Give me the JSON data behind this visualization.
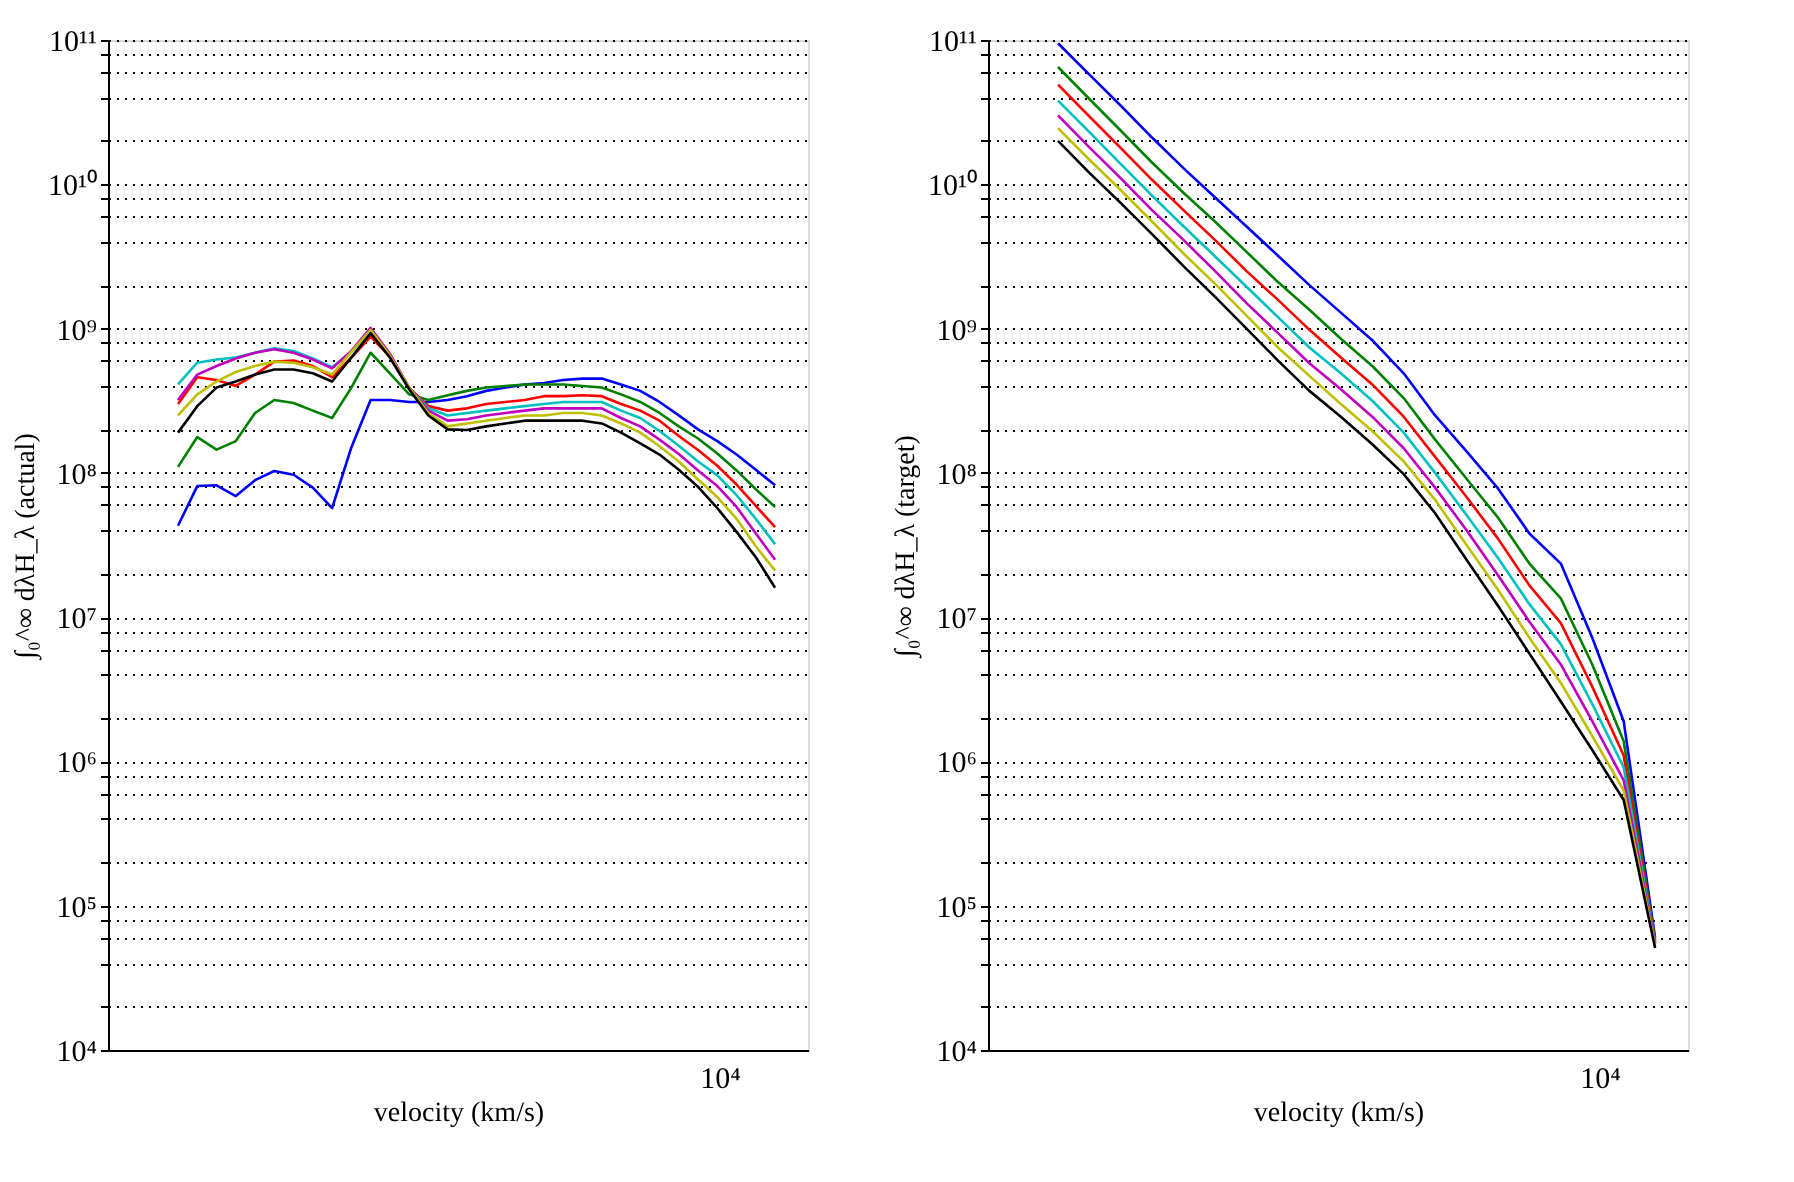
{
  "chart_data": [
    {
      "type": "line",
      "xlabel": "velocity (km/s)",
      "ylabel": "∫₀^∞ dλH_λ (actual)",
      "log": "y",
      "grid": "y",
      "annotations": [
        "10⁴"
      ],
      "ylim": [
        10000,
        100000000000
      ],
      "yticks": [
        {
          "value": 10000,
          "label": "10⁴"
        },
        {
          "value": 20000,
          "label": null
        },
        {
          "value": 40000,
          "label": null
        },
        {
          "value": 60000,
          "label": null
        },
        {
          "value": 80000,
          "label": null
        },
        {
          "value": 100000,
          "label": "10⁵"
        },
        {
          "value": 200000,
          "label": null
        },
        {
          "value": 400000,
          "label": null
        },
        {
          "value": 600000,
          "label": null
        },
        {
          "value": 800000,
          "label": null
        },
        {
          "value": 1000000,
          "label": "10⁶"
        },
        {
          "value": 2000000,
          "label": null
        },
        {
          "value": 4000000,
          "label": null
        },
        {
          "value": 6000000,
          "label": null
        },
        {
          "value": 8000000,
          "label": null
        },
        {
          "value": 10000000,
          "label": "10⁷"
        },
        {
          "value": 20000000,
          "label": null
        },
        {
          "value": 40000000,
          "label": null
        },
        {
          "value": 60000000,
          "label": null
        },
        {
          "value": 80000000,
          "label": null
        },
        {
          "value": 100000000,
          "label": "10⁸"
        },
        {
          "value": 200000000,
          "label": null
        },
        {
          "value": 400000000,
          "label": null
        },
        {
          "value": 600000000,
          "label": null
        },
        {
          "value": 800000000,
          "label": null
        },
        {
          "value": 1000000000,
          "label": "10⁹"
        },
        {
          "value": 2000000000,
          "label": null
        },
        {
          "value": 4000000000,
          "label": null
        },
        {
          "value": 6000000000,
          "label": null
        },
        {
          "value": 8000000000,
          "label": null
        },
        {
          "value": 10000000000,
          "label": "10¹⁰"
        },
        {
          "value": 20000000000,
          "label": null
        },
        {
          "value": 40000000000,
          "label": null
        },
        {
          "value": 60000000000,
          "label": null
        },
        {
          "value": 80000000000,
          "label": null
        },
        {
          "value": 100000000000,
          "label": "10¹¹"
        }
      ],
      "categories": [
        null,
        null,
        null,
        null,
        null,
        null,
        null,
        null,
        null,
        null,
        null,
        null,
        null,
        null,
        null,
        null,
        null,
        null,
        null,
        null,
        null,
        null,
        null,
        null,
        null,
        null,
        null,
        null,
        null,
        null,
        null,
        null
      ],
      "series": [
        {
          "color": "#0000ff",
          "values": [
            43000000.0,
            81000000.0,
            82000000.0,
            69000000.0,
            89000000.0,
            103000000.0,
            97000000.0,
            79000000.0,
            57000000.0,
            150000000.0,
            320000000.0,
            320000000.0,
            310000000.0,
            310000000.0,
            320000000.0,
            340000000.0,
            370000000.0,
            390000000.0,
            410000000.0,
            420000000.0,
            440000000.0,
            450000000.0,
            450000000.0,
            410000000.0,
            370000000.0,
            310000000.0,
            250000000.0,
            200000000.0,
            166000000.0,
            134000000.0,
            105000000.0,
            82000000.0
          ]
        },
        {
          "color": "#008000",
          "values": [
            110000000.0,
            177000000.0,
            145000000.0,
            166000000.0,
            260000000.0,
            320000000.0,
            305000000.0,
            270000000.0,
            240000000.0,
            390000000.0,
            680000000.0,
            490000000.0,
            350000000.0,
            320000000.0,
            345000000.0,
            370000000.0,
            390000000.0,
            400000000.0,
            410000000.0,
            410000000.0,
            410000000.0,
            400000000.0,
            390000000.0,
            350000000.0,
            310000000.0,
            260000000.0,
            210000000.0,
            173000000.0,
            136000000.0,
            104000000.0,
            77000000.0,
            58000000.0
          ]
        },
        {
          "color": "#ff0000",
          "values": [
            300000000.0,
            460000000.0,
            440000000.0,
            400000000.0,
            480000000.0,
            590000000.0,
            600000000.0,
            550000000.0,
            460000000.0,
            630000000.0,
            880000000.0,
            640000000.0,
            390000000.0,
            290000000.0,
            270000000.0,
            280000000.0,
            300000000.0,
            310000000.0,
            320000000.0,
            340000000.0,
            340000000.0,
            345000000.0,
            340000000.0,
            300000000.0,
            270000000.0,
            230000000.0,
            180000000.0,
            144000000.0,
            112000000.0,
            83000000.0,
            59000000.0,
            42000000.0
          ]
        },
        {
          "color": "#00bfbf",
          "values": [
            410000000.0,
            580000000.0,
            610000000.0,
            630000000.0,
            680000000.0,
            730000000.0,
            700000000.0,
            620000000.0,
            540000000.0,
            690000000.0,
            950000000.0,
            650000000.0,
            390000000.0,
            280000000.0,
            250000000.0,
            260000000.0,
            270000000.0,
            280000000.0,
            290000000.0,
            300000000.0,
            310000000.0,
            310000000.0,
            310000000.0,
            270000000.0,
            240000000.0,
            195000000.0,
            154000000.0,
            120000000.0,
            96000000.0,
            70000000.0,
            48000000.0,
            32000000.0
          ]
        },
        {
          "color": "#bf00bf",
          "values": [
            320000000.0,
            480000000.0,
            550000000.0,
            620000000.0,
            680000000.0,
            720000000.0,
            680000000.0,
            610000000.0,
            530000000.0,
            700000000.0,
            1010000000.0,
            670000000.0,
            390000000.0,
            270000000.0,
            230000000.0,
            235000000.0,
            250000000.0,
            260000000.0,
            270000000.0,
            280000000.0,
            280000000.0,
            280000000.0,
            280000000.0,
            240000000.0,
            210000000.0,
            170000000.0,
            135000000.0,
            104000000.0,
            81000000.0,
            58000000.0,
            38000000.0,
            25000000.0
          ]
        },
        {
          "color": "#bfbf00",
          "values": [
            250000000.0,
            350000000.0,
            430000000.0,
            500000000.0,
            550000000.0,
            590000000.0,
            580000000.0,
            540000000.0,
            480000000.0,
            690000000.0,
            980000000.0,
            650000000.0,
            390000000.0,
            260000000.0,
            210000000.0,
            220000000.0,
            230000000.0,
            240000000.0,
            250000000.0,
            250000000.0,
            260000000.0,
            260000000.0,
            250000000.0,
            220000000.0,
            190000000.0,
            153000000.0,
            120000000.0,
            90000000.0,
            68000000.0,
            48000000.0,
            31000000.0,
            21000000.0
          ]
        },
        {
          "color": "#000000",
          "values": [
            190000000.0,
            290000000.0,
            390000000.0,
            430000000.0,
            480000000.0,
            520000000.0,
            520000000.0,
            490000000.0,
            430000000.0,
            630000000.0,
            930000000.0,
            630000000.0,
            380000000.0,
            250000000.0,
            200000000.0,
            198000000.0,
            210000000.0,
            220000000.0,
            230000000.0,
            230000000.0,
            230000000.0,
            230000000.0,
            220000000.0,
            190000000.0,
            160000000.0,
            134000000.0,
            105000000.0,
            80000000.0,
            57000000.0,
            39000000.0,
            26000000.0,
            16000000.0
          ]
        }
      ]
    },
    {
      "type": "line",
      "xlabel": "velocity (km/s)",
      "ylabel": "∫₀^∞ dλH_λ (target)",
      "log": "y",
      "grid": "y",
      "annotations": [
        "10⁴"
      ],
      "ylim": [
        10000,
        100000000000
      ],
      "yticks": [
        {
          "value": 10000,
          "label": "10⁴"
        },
        {
          "value": 20000,
          "label": null
        },
        {
          "value": 40000,
          "label": null
        },
        {
          "value": 60000,
          "label": null
        },
        {
          "value": 80000,
          "label": null
        },
        {
          "value": 100000,
          "label": "10⁵"
        },
        {
          "value": 200000,
          "label": null
        },
        {
          "value": 400000,
          "label": null
        },
        {
          "value": 600000,
          "label": null
        },
        {
          "value": 800000,
          "label": null
        },
        {
          "value": 1000000,
          "label": "10⁶"
        },
        {
          "value": 2000000,
          "label": null
        },
        {
          "value": 4000000,
          "label": null
        },
        {
          "value": 6000000,
          "label": null
        },
        {
          "value": 8000000,
          "label": null
        },
        {
          "value": 10000000,
          "label": "10⁷"
        },
        {
          "value": 20000000,
          "label": null
        },
        {
          "value": 40000000,
          "label": null
        },
        {
          "value": 60000000,
          "label": null
        },
        {
          "value": 80000000,
          "label": null
        },
        {
          "value": 100000000,
          "label": "10⁸"
        },
        {
          "value": 200000000,
          "label": null
        },
        {
          "value": 400000000,
          "label": null
        },
        {
          "value": 600000000,
          "label": null
        },
        {
          "value": 800000000,
          "label": null
        },
        {
          "value": 1000000000,
          "label": "10⁹"
        },
        {
          "value": 2000000000,
          "label": null
        },
        {
          "value": 4000000000,
          "label": null
        },
        {
          "value": 6000000000,
          "label": null
        },
        {
          "value": 8000000000,
          "label": null
        },
        {
          "value": 10000000000,
          "label": "10¹⁰"
        },
        {
          "value": 20000000000,
          "label": null
        },
        {
          "value": 40000000000,
          "label": null
        },
        {
          "value": 60000000000,
          "label": null
        },
        {
          "value": 80000000000,
          "label": null
        },
        {
          "value": 100000000000,
          "label": "10¹¹"
        }
      ],
      "categories": [
        null,
        null,
        null,
        null,
        null,
        null,
        null,
        null,
        null,
        null,
        null,
        null,
        null,
        null,
        null,
        null,
        null,
        null,
        null,
        null
      ],
      "series": [
        {
          "color": "#0000ff",
          "values": [
            95000000000.0,
            57500000000.0,
            35000000000.0,
            21000000000.0,
            12900000000.0,
            8100000000.0,
            5100000000.0,
            3200000000.0,
            2000000000.0,
            1290000000.0,
            830000000.0,
            490000000.0,
            250000000.0,
            141000000.0,
            78000000.0,
            38000000.0,
            23500000.0,
            7200000.0,
            1900000.0,
            60000.0
          ]
        },
        {
          "color": "#008000",
          "values": [
            65000000000.0,
            39000000000.0,
            23500000000.0,
            14100000000.0,
            8700000000.0,
            5500000000.0,
            3400000000.0,
            2100000000.0,
            1350000000.0,
            850000000.0,
            550000000.0,
            330000000.0,
            170000000.0,
            91000000.0,
            49000000.0,
            23500000.0,
            13500000.0,
            4700000.0,
            1380000.0,
            57500.0
          ]
        },
        {
          "color": "#ff0000",
          "values": [
            49000000000.0,
            29500000000.0,
            17800000000.0,
            10700000000.0,
            6600000000.0,
            4100000000.0,
            2500000000.0,
            1580000000.0,
            980000000.0,
            630000000.0,
            410000000.0,
            245000000.0,
            129000000.0,
            68000000.0,
            35000000.0,
            16600000.0,
            9100000.0,
            3300000.0,
            1100000.0,
            56000.0
          ]
        },
        {
          "color": "#00bfbf",
          "values": [
            38000000000.0,
            23000000000.0,
            13800000000.0,
            8300000000.0,
            5100000000.0,
            3160000000.0,
            1950000000.0,
            1200000000.0,
            740000000.0,
            490000000.0,
            316000000.0,
            190000000.0,
            100000000.0,
            51000000.0,
            25700000.0,
            12300000.0,
            6500000.0,
            2500000.0,
            910000.0,
            55000.0
          ]
        },
        {
          "color": "#bf00bf",
          "values": [
            30000000000.0,
            18000000000.0,
            11000000000.0,
            6600000000.0,
            4100000000.0,
            2500000000.0,
            1500000000.0,
            930000000.0,
            575000000.0,
            380000000.0,
            245000000.0,
            148000000.0,
            79000000.0,
            40000000.0,
            19500000.0,
            9300000.0,
            4700000.0,
            1900000.0,
            740000.0,
            54000.0
          ]
        },
        {
          "color": "#bfbf00",
          "values": [
            24500000000.0,
            14800000000.0,
            9100000000.0,
            5500000000.0,
            3300000000.0,
            2040000000.0,
            1230000000.0,
            740000000.0,
            470000000.0,
            300000000.0,
            195000000.0,
            120000000.0,
            65000000.0,
            31600000.0,
            15500000.0,
            7200000.0,
            3500000.0,
            1500000.0,
            630000.0,
            52500.0
          ]
        },
        {
          "color": "#000000",
          "values": [
            20000000000.0,
            12000000000.0,
            7400000000.0,
            4500000000.0,
            2700000000.0,
            1660000000.0,
            1000000000.0,
            600000000.0,
            370000000.0,
            245000000.0,
            158000000.0,
            98000000.0,
            52500000.0,
            25000000.0,
            12000000.0,
            5600000.0,
            2600000.0,
            1200000.0,
            540000.0,
            51000.0
          ]
        }
      ]
    }
  ]
}
